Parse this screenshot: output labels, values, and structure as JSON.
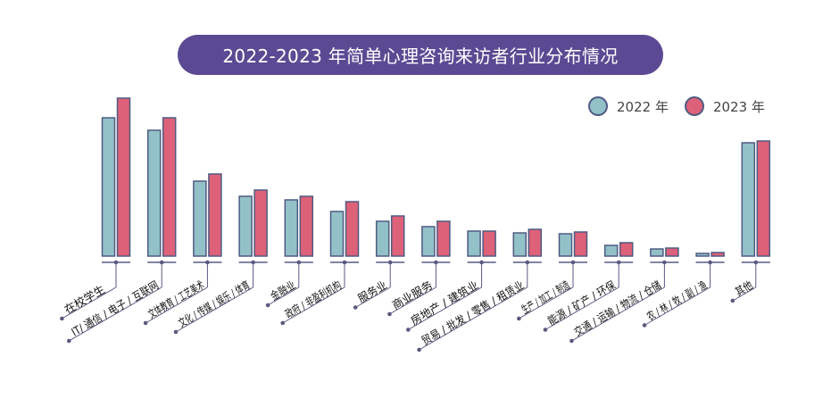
{
  "chart_data": {
    "type": "bar",
    "title": "2022-2023 年简单心理咨询来访者行业分布情况",
    "xlabel": "",
    "ylabel": "",
    "ylim": [
      0,
      180
    ],
    "grid": false,
    "legend_position": "top-right",
    "categories": [
      "在校学生",
      "IT/ 通信 / 电子 / 互联网",
      "文体教育 / 工艺美术",
      "文化 / 传媒 / 娱乐 / 体育",
      "金融业",
      "政府 / 非盈利机构",
      "服务业",
      "商业服务",
      "房地产 / 建筑业",
      "贸易 / 批发 / 零售 / 租赁业",
      "生产 / 加工 / 制造",
      "能源 / 矿产 / 环保",
      "交通 / 运输 / 物流 / 仓储",
      "农 / 林 / 牧 / 副 / 渔",
      "其他"
    ],
    "series": [
      {
        "name": "2022 年",
        "color": "#93c1c8",
        "values": [
          155,
          141,
          84,
          67,
          63,
          50,
          39,
          33,
          28,
          26,
          25,
          12,
          8,
          3,
          127
        ]
      },
      {
        "name": "2023 年",
        "color": "#dd6178",
        "values": [
          177,
          155,
          92,
          74,
          67,
          61,
          45,
          39,
          28,
          30,
          27,
          15,
          9,
          4,
          129
        ]
      }
    ]
  },
  "colors": {
    "title_bg": "#5b4a93",
    "bar_stroke": "#4f5b82",
    "axis": "#5a5a82"
  }
}
